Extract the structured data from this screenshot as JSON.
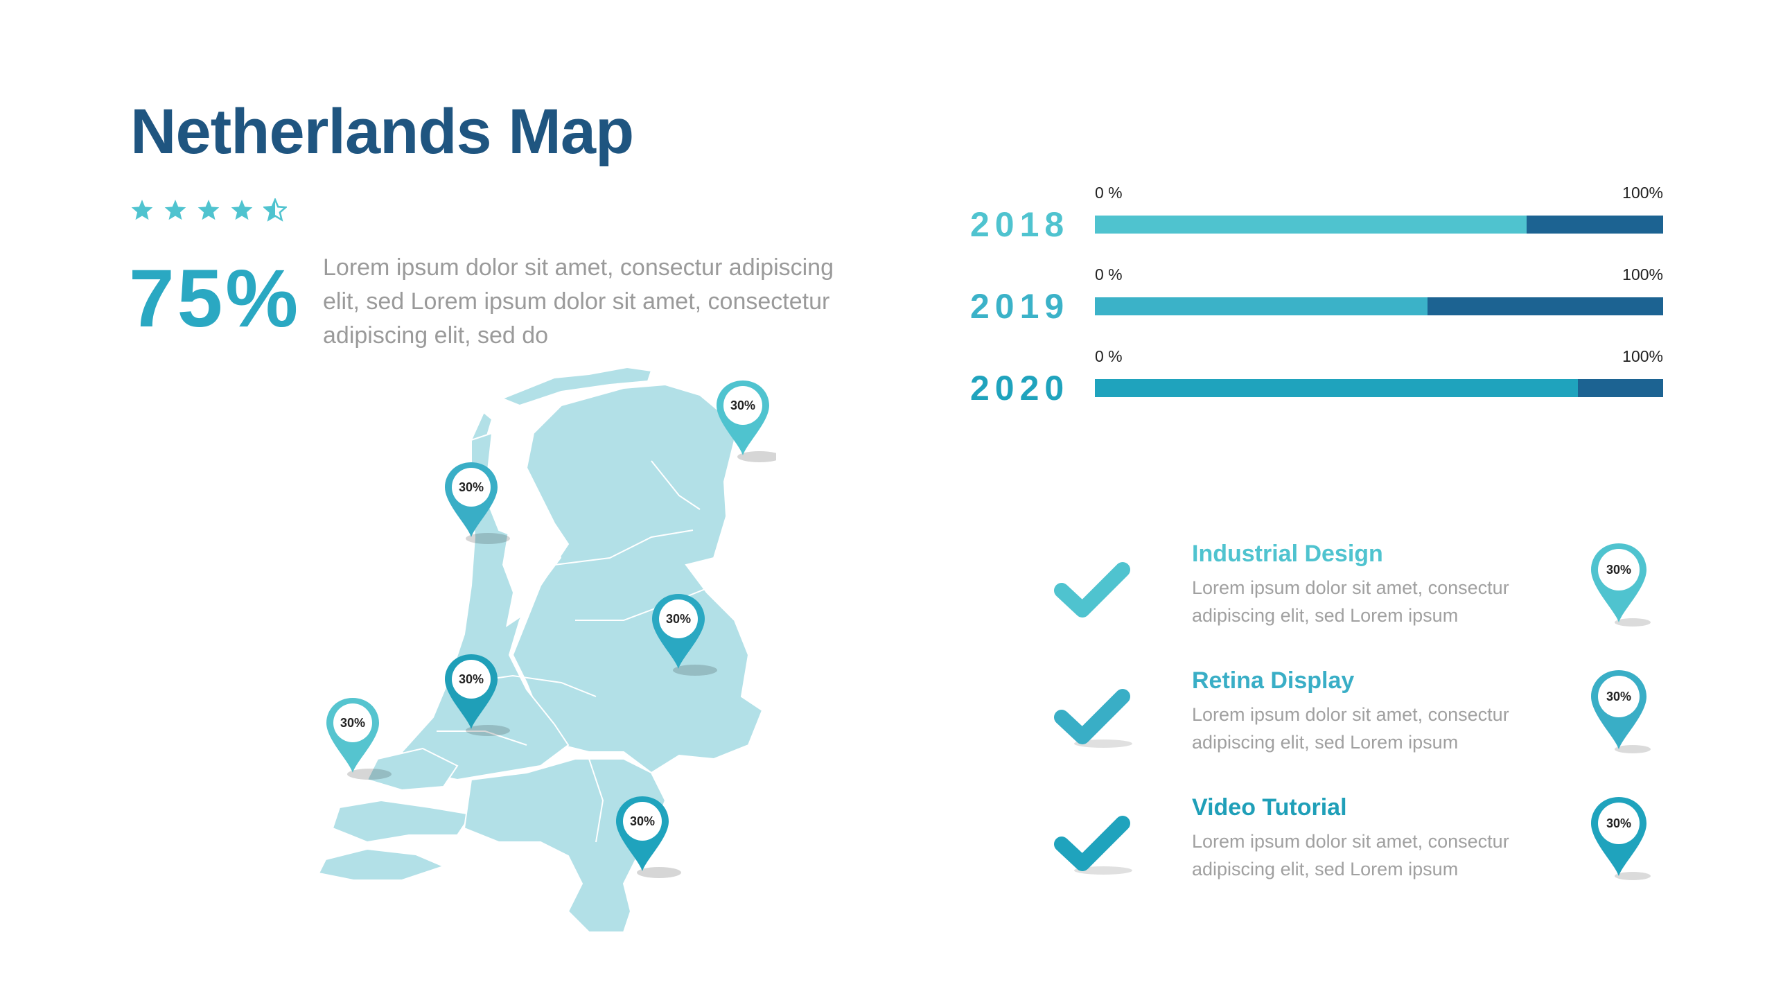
{
  "header": {
    "title": "Netherlands Map"
  },
  "rating": {
    "value": 4.5,
    "max": 5
  },
  "summary": {
    "percent": "75%",
    "text": "Lorem ipsum dolor sit amet, consectur adipiscing elit, sed Lorem ipsum dolor sit amet, consectetur adipiscing elit, sed do"
  },
  "map": {
    "region": "Netherlands",
    "fill_color": "#b2e0e7",
    "pins": [
      {
        "label": "30%",
        "color": "#4fc3cf"
      },
      {
        "label": "30%",
        "color": "#39aec6"
      },
      {
        "label": "30%",
        "color": "#2aa8c2"
      },
      {
        "label": "30%",
        "color": "#1f9fb8"
      },
      {
        "label": "30%",
        "color": "#55c4cf"
      },
      {
        "label": "30%",
        "color": "#1fa3bd"
      }
    ]
  },
  "progress": {
    "min_label": "0 %",
    "max_label": "100%",
    "rows": [
      {
        "year": "2018",
        "value": 0.76,
        "color": "#4fc3cf"
      },
      {
        "year": "2019",
        "value": 0.585,
        "color": "#3bb2c8"
      },
      {
        "year": "2020",
        "value": 0.85,
        "color": "#1fa3bd"
      }
    ],
    "track_color": "#1c6392"
  },
  "features": [
    {
      "title": "Industrial Design",
      "desc_line1": "Lorem ipsum dolor sit amet, consectur",
      "desc_line2": "adipiscing elit, sed Lorem ipsum",
      "pin": "30%",
      "color": "#4fc3cf",
      "icon": "checkmark-icon"
    },
    {
      "title": "Retina Display",
      "desc_line1": "Lorem ipsum dolor sit amet, consectur",
      "desc_line2": "adipiscing elit, sed Lorem ipsum",
      "pin": "30%",
      "color": "#39aec6",
      "icon": "checkmark-icon"
    },
    {
      "title": "Video Tutorial",
      "desc_line1": "Lorem ipsum dolor sit amet, consectur",
      "desc_line2": "adipiscing elit, sed Lorem ipsum",
      "pin": "30%",
      "color": "#1fa3bd",
      "icon": "checkmark-icon"
    }
  ]
}
